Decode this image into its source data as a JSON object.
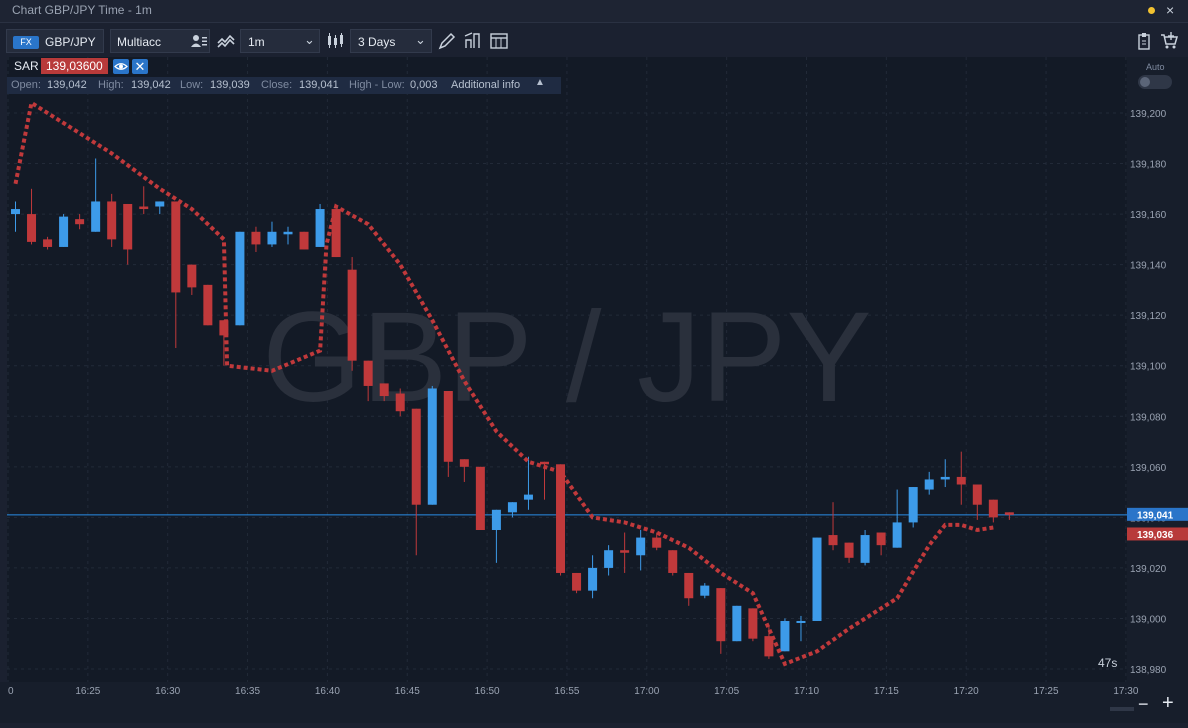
{
  "window": {
    "title": "Chart GBP/JPY Time - 1m"
  },
  "toolbar": {
    "instrument_badge": "FX",
    "instrument": "GBP/JPY",
    "account": "Multiacc",
    "timeframe": "1m",
    "period": "3 Days"
  },
  "indicator": {
    "name": "SAR",
    "value": "139,03600"
  },
  "ohlc": {
    "open_label": "Open:",
    "open": "139,042",
    "high_label": "High:",
    "high": "139,042",
    "low_label": "Low:",
    "low": "139,039",
    "close_label": "Close:",
    "close": "139,041",
    "range_label": "High - Low:",
    "range": "0,003",
    "more_label": "Additional info"
  },
  "auto_label": "Auto",
  "timer": "47s",
  "watermark": "GBP / JPY",
  "colors": {
    "bull": "#3d9be9",
    "bear": "#c0393b",
    "sar": "#c0393b",
    "price_line": "#2a8ee8"
  },
  "chart_data": {
    "type": "candlestick",
    "title": "",
    "y_tick_labels": [
      "139,200",
      "139,180",
      "139,160",
      "139,140",
      "139,120",
      "139,100",
      "139,080",
      "139,060",
      "139,040",
      "139,020",
      "139,000",
      "138,980"
    ],
    "y_ticks": [
      139.2,
      139.18,
      139.16,
      139.14,
      139.12,
      139.1,
      139.08,
      139.06,
      139.04,
      139.02,
      139.0,
      138.98
    ],
    "x_tick_labels": [
      "0",
      "16:25",
      "16:30",
      "16:35",
      "16:40",
      "16:45",
      "16:50",
      "16:55",
      "17:00",
      "17:05",
      "17:10",
      "17:15",
      "17:20",
      "17:25",
      "17:30"
    ],
    "current_price_label": "139,041",
    "current_price": 139.041,
    "sar_label": "139,036",
    "sar_level": 139.036,
    "candles": [
      {
        "o": 139.16,
        "h": 139.165,
        "l": 139.153,
        "c": 139.162
      },
      {
        "o": 139.16,
        "h": 139.17,
        "l": 139.148,
        "c": 139.149
      },
      {
        "o": 139.15,
        "h": 139.151,
        "l": 139.146,
        "c": 139.147
      },
      {
        "o": 139.147,
        "h": 139.16,
        "l": 139.147,
        "c": 139.159
      },
      {
        "o": 139.158,
        "h": 139.16,
        "l": 139.154,
        "c": 139.156
      },
      {
        "o": 139.153,
        "h": 139.182,
        "l": 139.153,
        "c": 139.165
      },
      {
        "o": 139.165,
        "h": 139.168,
        "l": 139.147,
        "c": 139.15
      },
      {
        "o": 139.164,
        "h": 139.164,
        "l": 139.14,
        "c": 139.146
      },
      {
        "o": 139.163,
        "h": 139.171,
        "l": 139.16,
        "c": 139.162
      },
      {
        "o": 139.163,
        "h": 139.165,
        "l": 139.16,
        "c": 139.165
      },
      {
        "o": 139.165,
        "h": 139.165,
        "l": 139.107,
        "c": 139.129
      },
      {
        "o": 139.14,
        "h": 139.14,
        "l": 139.128,
        "c": 139.131
      },
      {
        "o": 139.132,
        "h": 139.132,
        "l": 139.116,
        "c": 139.116
      },
      {
        "o": 139.118,
        "h": 139.118,
        "l": 139.1,
        "c": 139.112
      },
      {
        "o": 139.116,
        "h": 139.153,
        "l": 139.116,
        "c": 139.153
      },
      {
        "o": 139.153,
        "h": 139.155,
        "l": 139.145,
        "c": 139.148
      },
      {
        "o": 139.148,
        "h": 139.157,
        "l": 139.147,
        "c": 139.153
      },
      {
        "o": 139.152,
        "h": 139.155,
        "l": 139.148,
        "c": 139.153
      },
      {
        "o": 139.153,
        "h": 139.153,
        "l": 139.146,
        "c": 139.146
      },
      {
        "o": 139.147,
        "h": 139.164,
        "l": 139.147,
        "c": 139.162
      },
      {
        "o": 139.162,
        "h": 139.162,
        "l": 139.143,
        "c": 139.143
      },
      {
        "o": 139.138,
        "h": 139.143,
        "l": 139.098,
        "c": 139.102
      },
      {
        "o": 139.102,
        "h": 139.102,
        "l": 139.086,
        "c": 139.092
      },
      {
        "o": 139.093,
        "h": 139.093,
        "l": 139.086,
        "c": 139.088
      },
      {
        "o": 139.089,
        "h": 139.091,
        "l": 139.08,
        "c": 139.082
      },
      {
        "o": 139.083,
        "h": 139.083,
        "l": 139.025,
        "c": 139.045
      },
      {
        "o": 139.045,
        "h": 139.092,
        "l": 139.045,
        "c": 139.091
      },
      {
        "o": 139.09,
        "h": 139.09,
        "l": 139.056,
        "c": 139.062
      },
      {
        "o": 139.063,
        "h": 139.063,
        "l": 139.054,
        "c": 139.06
      },
      {
        "o": 139.06,
        "h": 139.06,
        "l": 139.035,
        "c": 139.035
      },
      {
        "o": 139.035,
        "h": 139.043,
        "l": 139.022,
        "c": 139.043
      },
      {
        "o": 139.042,
        "h": 139.046,
        "l": 139.04,
        "c": 139.046
      },
      {
        "o": 139.047,
        "h": 139.064,
        "l": 139.043,
        "c": 139.049
      },
      {
        "o": 139.062,
        "h": 139.062,
        "l": 139.047,
        "c": 139.061
      },
      {
        "o": 139.061,
        "h": 139.061,
        "l": 139.017,
        "c": 139.018
      },
      {
        "o": 139.018,
        "h": 139.018,
        "l": 139.01,
        "c": 139.011
      },
      {
        "o": 139.011,
        "h": 139.025,
        "l": 139.008,
        "c": 139.02
      },
      {
        "o": 139.02,
        "h": 139.029,
        "l": 139.017,
        "c": 139.027
      },
      {
        "o": 139.027,
        "h": 139.034,
        "l": 139.018,
        "c": 139.026
      },
      {
        "o": 139.025,
        "h": 139.035,
        "l": 139.019,
        "c": 139.032
      },
      {
        "o": 139.032,
        "h": 139.034,
        "l": 139.027,
        "c": 139.028
      },
      {
        "o": 139.027,
        "h": 139.027,
        "l": 139.017,
        "c": 139.018
      },
      {
        "o": 139.018,
        "h": 139.018,
        "l": 139.005,
        "c": 139.008
      },
      {
        "o": 139.009,
        "h": 139.014,
        "l": 139.008,
        "c": 139.013
      },
      {
        "o": 139.012,
        "h": 139.012,
        "l": 138.986,
        "c": 138.991
      },
      {
        "o": 138.991,
        "h": 139.005,
        "l": 138.991,
        "c": 139.005
      },
      {
        "o": 139.004,
        "h": 139.004,
        "l": 138.991,
        "c": 138.992
      },
      {
        "o": 138.993,
        "h": 138.997,
        "l": 138.984,
        "c": 138.985
      },
      {
        "o": 138.987,
        "h": 139.0,
        "l": 138.987,
        "c": 138.999
      },
      {
        "o": 138.999,
        "h": 139.001,
        "l": 138.991,
        "c": 138.999
      },
      {
        "o": 138.999,
        "h": 139.032,
        "l": 138.999,
        "c": 139.032
      },
      {
        "o": 139.033,
        "h": 139.046,
        "l": 139.027,
        "c": 139.029
      },
      {
        "o": 139.03,
        "h": 139.03,
        "l": 139.022,
        "c": 139.024
      },
      {
        "o": 139.022,
        "h": 139.035,
        "l": 139.021,
        "c": 139.033
      },
      {
        "o": 139.034,
        "h": 139.034,
        "l": 139.025,
        "c": 139.029
      },
      {
        "o": 139.028,
        "h": 139.051,
        "l": 139.028,
        "c": 139.038
      },
      {
        "o": 139.038,
        "h": 139.052,
        "l": 139.036,
        "c": 139.052
      },
      {
        "o": 139.051,
        "h": 139.058,
        "l": 139.049,
        "c": 139.055
      },
      {
        "o": 139.055,
        "h": 139.063,
        "l": 139.052,
        "c": 139.056
      },
      {
        "o": 139.056,
        "h": 139.066,
        "l": 139.045,
        "c": 139.053
      },
      {
        "o": 139.053,
        "h": 139.053,
        "l": 139.039,
        "c": 139.045
      },
      {
        "o": 139.047,
        "h": 139.047,
        "l": 139.038,
        "c": 139.04
      },
      {
        "o": 139.042,
        "h": 139.042,
        "l": 139.039,
        "c": 139.041
      }
    ],
    "sar_path": [
      [
        0,
        139.172
      ],
      [
        1,
        139.204
      ],
      [
        3,
        139.196
      ],
      [
        6,
        139.184
      ],
      [
        9,
        139.17
      ],
      [
        11,
        139.162
      ],
      [
        13,
        139.15
      ],
      [
        13.2,
        139.1
      ],
      [
        16,
        139.098
      ],
      [
        19,
        139.106
      ],
      [
        19.4,
        139.148
      ],
      [
        20,
        139.163
      ],
      [
        22,
        139.156
      ],
      [
        24,
        139.14
      ],
      [
        26,
        139.118
      ],
      [
        28,
        139.094
      ],
      [
        30,
        139.074
      ],
      [
        32,
        139.062
      ],
      [
        34,
        139.058
      ],
      [
        36,
        139.04
      ],
      [
        38,
        139.038
      ],
      [
        40,
        139.034
      ],
      [
        42,
        139.028
      ],
      [
        44,
        139.018
      ],
      [
        46,
        139.01
      ],
      [
        47,
        138.996
      ],
      [
        48,
        138.982
      ],
      [
        50,
        138.987
      ],
      [
        52,
        138.996
      ],
      [
        55,
        139.008
      ],
      [
        57,
        139.029
      ],
      [
        58,
        139.037
      ],
      [
        59,
        139.037
      ],
      [
        60,
        139.035
      ],
      [
        61,
        139.036
      ]
    ]
  }
}
